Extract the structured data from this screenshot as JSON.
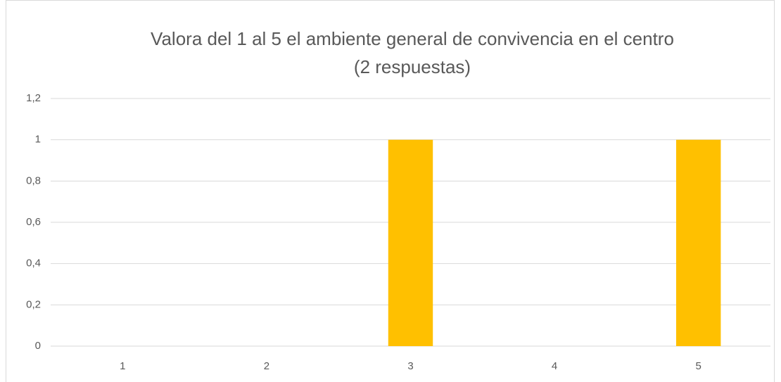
{
  "chart_data": {
    "type": "bar",
    "title": "Valora del 1 al 5 el ambiente general de convivencia en el centro",
    "subtitle": "(2 respuestas)",
    "categories": [
      "1",
      "2",
      "3",
      "4",
      "5"
    ],
    "values": [
      0,
      0,
      1,
      0,
      1
    ],
    "color": "#ffc000",
    "ylim": [
      0,
      1.2
    ],
    "yticks": [
      0,
      {
        "value": 0.2,
        "label": "0,2"
      },
      {
        "value": 0.4,
        "label": "0,4"
      },
      {
        "value": 0.6,
        "label": "0,6"
      },
      {
        "value": 0.8,
        "label": "0,8"
      },
      1,
      {
        "value": 1.2,
        "label": "1,2"
      }
    ],
    "grid": true
  }
}
